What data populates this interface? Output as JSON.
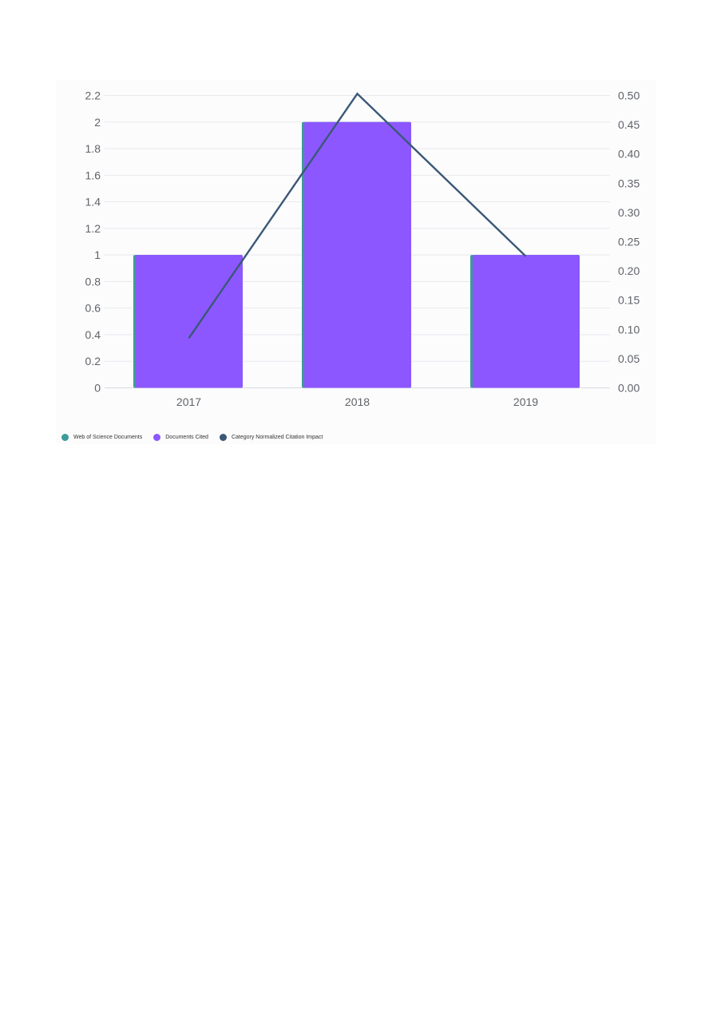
{
  "chart_data": {
    "type": "bar",
    "categories": [
      "2017",
      "2018",
      "2019"
    ],
    "series": [
      {
        "name": "Web of Science Documents",
        "type": "bar",
        "axis": "left",
        "color": "#3d9b99",
        "values": [
          1,
          2,
          1
        ]
      },
      {
        "name": "Documents Cited",
        "type": "bar",
        "axis": "left",
        "color": "#8c57ff",
        "values": [
          1,
          2,
          1
        ]
      },
      {
        "name": "Category Normalized Citation Impact",
        "type": "line",
        "axis": "right",
        "color": "#3a5876",
        "values": [
          0.085,
          0.503,
          0.225
        ]
      }
    ],
    "y_left": {
      "ylim": [
        0,
        2.2
      ],
      "ticks": [
        "0",
        "0.2",
        "0.4",
        "0.6",
        "0.8",
        "1",
        "1.2",
        "1.4",
        "1.6",
        "1.8",
        "2",
        "2.2"
      ]
    },
    "y_right": {
      "ylim": [
        0,
        0.5
      ],
      "ticks": [
        "0.00",
        "0.05",
        "0.10",
        "0.15",
        "0.20",
        "0.25",
        "0.30",
        "0.35",
        "0.40",
        "0.45",
        "0.50"
      ]
    },
    "grid": true,
    "legend": "bottom-left",
    "title": "",
    "xlabel": "",
    "ylabel": ""
  },
  "legend": {
    "items": [
      {
        "label": "Web of Science Documents",
        "color": "#3d9b99"
      },
      {
        "label": "Documents Cited",
        "color": "#8c57ff"
      },
      {
        "label": "Category Normalized Citation Impact",
        "color": "#3a5876"
      }
    ]
  }
}
